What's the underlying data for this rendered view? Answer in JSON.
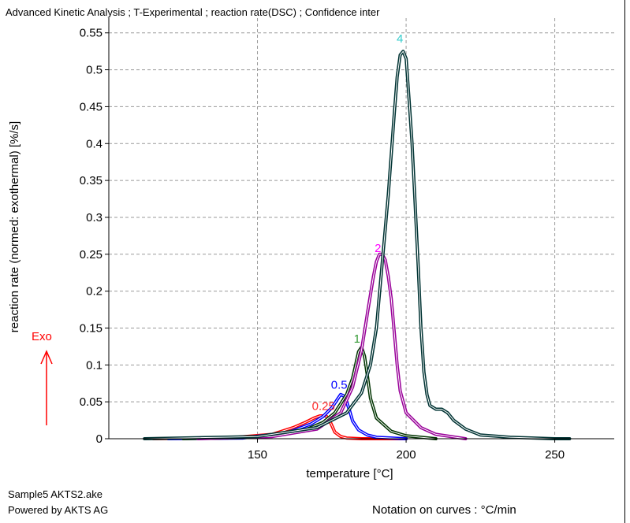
{
  "window": {
    "title": "Advanced Kinetic Analysis ; T-Experimental ; reaction rate(DSC) ; Confidence inter"
  },
  "footer": {
    "file_name": "Sample5 AKTS2.ake",
    "powered_by": "Powered by AKTS AG",
    "notation": "Notation on curves : °C/min"
  },
  "exo_indicator": {
    "label": "Exo",
    "color": "#ff0000"
  },
  "chart_data": {
    "type": "line",
    "title": "Advanced Kinetic Analysis ; T-Experimental ; reaction rate(DSC) ; Confidence inter",
    "xlabel": "temperature [°C]",
    "ylabel": "reaction rate (normed: exothermal) [%/s]",
    "xlim": [
      100,
      270
    ],
    "ylim": [
      0,
      0.57
    ],
    "grid": true,
    "x_ticks": [
      150,
      200,
      250
    ],
    "y_ticks": [
      0,
      0.05,
      0.1,
      0.15,
      0.2,
      0.25,
      0.3,
      0.35,
      0.4,
      0.45,
      0.5,
      0.55
    ],
    "x_tick_labels": [
      "150",
      "200",
      "250"
    ],
    "y_tick_labels": [
      "0",
      "0.05",
      "0.1",
      "0.15",
      "0.2",
      "0.25",
      "0.3",
      "0.35",
      "0.4",
      "0.45",
      "0.5",
      "0.55"
    ],
    "series": [
      {
        "name": "0.25",
        "color": "#ff0000",
        "x": [
          115,
          140,
          155,
          162,
          166,
          169,
          171,
          173,
          174,
          175,
          176,
          178,
          180,
          185,
          200
        ],
        "y": [
          0,
          0.001,
          0.006,
          0.015,
          0.022,
          0.028,
          0.031,
          0.031,
          0.027,
          0.018,
          0.009,
          0.003,
          0.001,
          0,
          0
        ]
      },
      {
        "name": "0.5",
        "color": "#0000ff",
        "x": [
          120,
          145,
          160,
          168,
          172,
          175,
          177,
          178,
          179,
          180,
          181,
          182,
          184,
          187,
          190,
          200
        ],
        "y": [
          0,
          0.001,
          0.008,
          0.02,
          0.03,
          0.042,
          0.054,
          0.06,
          0.058,
          0.05,
          0.038,
          0.024,
          0.012,
          0.005,
          0.002,
          0
        ]
      },
      {
        "name": "1",
        "color": "#003300",
        "x": [
          125,
          150,
          165,
          172,
          176,
          180,
          182,
          183,
          184,
          185,
          186,
          187,
          188,
          190,
          195,
          200,
          210
        ],
        "y": [
          0,
          0.002,
          0.01,
          0.022,
          0.035,
          0.06,
          0.082,
          0.1,
          0.118,
          0.124,
          0.112,
          0.085,
          0.055,
          0.028,
          0.01,
          0.004,
          0
        ]
      },
      {
        "name": "2",
        "color": "#990099",
        "x": [
          130,
          155,
          170,
          178,
          182,
          185,
          187,
          189,
          190,
          191,
          192,
          193,
          194,
          195,
          196,
          197,
          198,
          200,
          205,
          210,
          220
        ],
        "y": [
          0,
          0.003,
          0.013,
          0.035,
          0.07,
          0.12,
          0.17,
          0.22,
          0.24,
          0.25,
          0.25,
          0.242,
          0.22,
          0.19,
          0.145,
          0.1,
          0.065,
          0.035,
          0.015,
          0.006,
          0
        ]
      },
      {
        "name": "4",
        "color": "#003333",
        "x": [
          112,
          150,
          170,
          180,
          185,
          188,
          190,
          192,
          194,
          196,
          197,
          198,
          199,
          200,
          201,
          202,
          203,
          204,
          205,
          206,
          207,
          208,
          210,
          212,
          214,
          216,
          220,
          225,
          235,
          250,
          255
        ],
        "y": [
          0,
          0.003,
          0.015,
          0.035,
          0.062,
          0.1,
          0.15,
          0.24,
          0.33,
          0.44,
          0.49,
          0.52,
          0.525,
          0.515,
          0.46,
          0.4,
          0.32,
          0.24,
          0.15,
          0.09,
          0.06,
          0.045,
          0.04,
          0.04,
          0.035,
          0.025,
          0.013,
          0.005,
          0.002,
          0,
          0
        ]
      }
    ],
    "curve_labels": [
      {
        "text": "0.25",
        "color": "#ff2a2a",
        "x": 172.2,
        "y": 0.039
      },
      {
        "text": "0.5",
        "color": "#0000ff",
        "x": 177.5,
        "y": 0.068
      },
      {
        "text": "1",
        "color": "#339933",
        "x": 183.5,
        "y": 0.13
      },
      {
        "text": "2",
        "color": "#ff00ff",
        "x": 190.5,
        "y": 0.253
      },
      {
        "text": "4",
        "color": "#33cccc",
        "x": 197.9,
        "y": 0.537
      }
    ]
  }
}
